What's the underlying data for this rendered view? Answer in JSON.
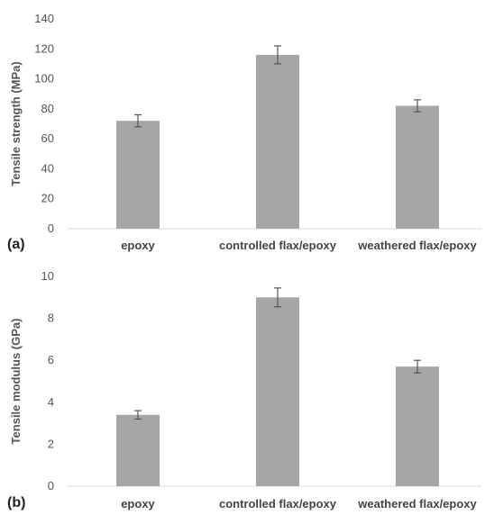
{
  "chart_data": [
    {
      "type": "bar",
      "panel_label": "(a)",
      "categories": [
        "epoxy",
        "controlled flax/epoxy",
        "weathered flax/epoxy"
      ],
      "values": [
        72,
        116,
        82
      ],
      "errors": [
        4,
        6,
        4
      ],
      "ylabel": "Tensile strength (MPa)",
      "ylim": [
        0,
        140
      ],
      "yticks": [
        0,
        20,
        40,
        60,
        80,
        100,
        120,
        140
      ],
      "grid": false,
      "bar_color": "#a6a6a6"
    },
    {
      "type": "bar",
      "panel_label": "(b)",
      "categories": [
        "epoxy",
        "controlled flax/epoxy",
        "weathered flax/epoxy"
      ],
      "values": [
        3.4,
        9.0,
        5.7
      ],
      "errors": [
        0.2,
        0.45,
        0.3
      ],
      "ylabel": "Tensile modulus (GPa)",
      "ylim": [
        0,
        10
      ],
      "yticks": [
        0,
        2,
        4,
        6,
        8,
        10
      ],
      "grid": false,
      "bar_color": "#a6a6a6"
    }
  ]
}
